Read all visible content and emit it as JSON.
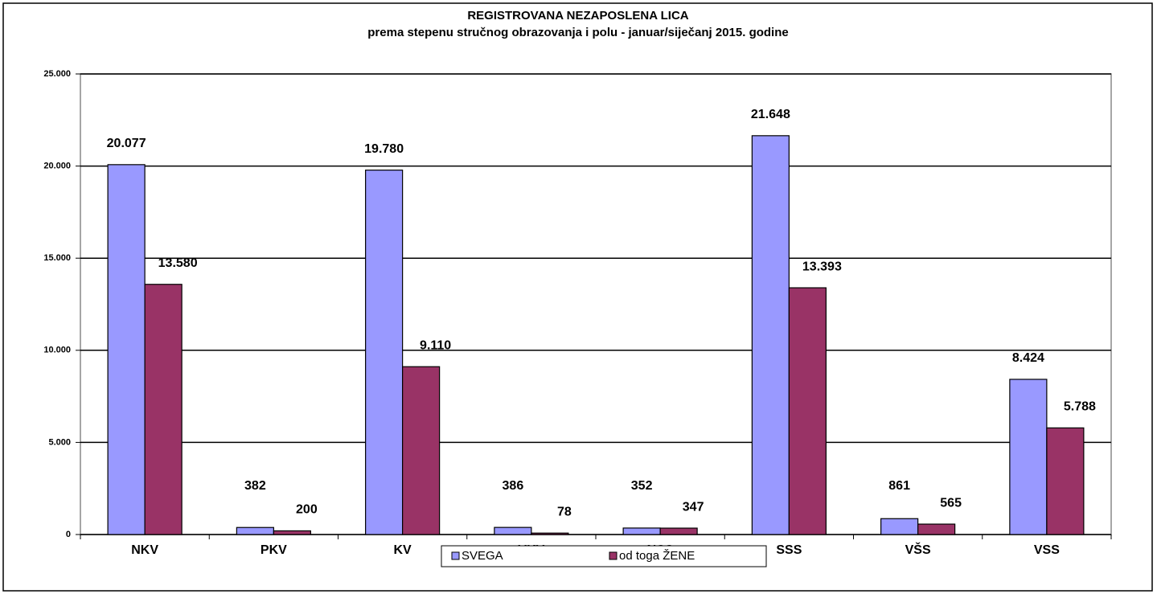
{
  "chart_data": {
    "type": "bar",
    "title": "REGISTROVANA NEZAPOSLENA LICA",
    "subtitle": "prema stepenu stručnog obrazovanja i polu - januar/siječanj 2015. godine",
    "categories": [
      "NKV",
      "PKV",
      "KV",
      "VKV",
      "NSS",
      "SSS",
      "VŠS",
      "VSS"
    ],
    "series": [
      {
        "name": "SVEGA",
        "color": "#9999ff",
        "values": [
          20077,
          382,
          19780,
          386,
          352,
          21648,
          861,
          8424
        ],
        "value_labels": [
          "20.077",
          "382",
          "19.780",
          "386",
          "352",
          "21.648",
          "861",
          "8.424"
        ]
      },
      {
        "name": "od toga ŽENE",
        "color": "#993366",
        "values": [
          13580,
          200,
          9110,
          78,
          347,
          13393,
          565,
          5788
        ],
        "value_labels": [
          "13.580",
          "200",
          "9.110",
          "78",
          "347",
          "13.393",
          "565",
          "5.788"
        ]
      }
    ],
    "ylim": [
      0,
      25000
    ],
    "yticks": [
      0,
      {
        "value": 5000,
        "label": "5.000"
      },
      {
        "value": 10000,
        "label": "10.000"
      },
      {
        "value": 15000,
        "label": "15.000"
      },
      {
        "value": 20000,
        "label": "20.000"
      },
      {
        "value": 25000,
        "label": "25.000"
      }
    ],
    "grid": true,
    "legend": "bottom"
  }
}
